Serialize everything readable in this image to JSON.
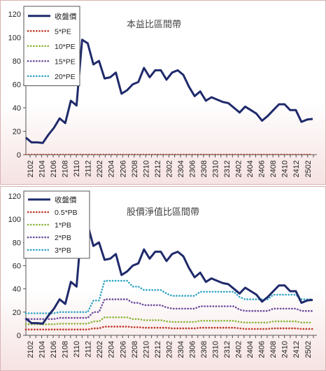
{
  "chart_data": [
    {
      "type": "line",
      "title": "本益比區間帶",
      "ylim": [
        0,
        120
      ],
      "y_ticks": [
        0,
        20,
        40,
        60,
        80,
        100,
        120
      ],
      "x_tick_labels": [
        "2102",
        "2104",
        "2106",
        "2108",
        "2110",
        "2112",
        "2202",
        "2204",
        "2206",
        "2208",
        "2210",
        "2212",
        "2302",
        "2304",
        "2306",
        "2308",
        "2310",
        "2312",
        "2402",
        "2404",
        "2406",
        "2408",
        "2410",
        "2412",
        "2502"
      ],
      "grid": false,
      "legend_position": "top-left",
      "series": [
        {
          "name": "收盤價",
          "color": "#1f2a6b",
          "style": "solid",
          "values": [
            14.5,
            10.5,
            10.5,
            10,
            17,
            23,
            31,
            27,
            46,
            42,
            98,
            95,
            77,
            80,
            65,
            66,
            70,
            52,
            55,
            60,
            62,
            74,
            66,
            72,
            72,
            64,
            70,
            72,
            68,
            58,
            50,
            54,
            46,
            49,
            47,
            45,
            44,
            40,
            36,
            41,
            38,
            35,
            29,
            33,
            38,
            43,
            43,
            38,
            38,
            28,
            30,
            30.5
          ]
        },
        {
          "name": "5*PE",
          "color": "#c0392b",
          "style": "dotted",
          "values": [
            0,
            0,
            0,
            0,
            0,
            0,
            0,
            0,
            0,
            0,
            0,
            0,
            0,
            0,
            0,
            0,
            0,
            0,
            0,
            0,
            0,
            0,
            0,
            0,
            0,
            0,
            0,
            0,
            0,
            0,
            0,
            0,
            0,
            0,
            0,
            0,
            0,
            0,
            0,
            0,
            0,
            0,
            0,
            0,
            0,
            0,
            0,
            0,
            0,
            0,
            0,
            0
          ]
        },
        {
          "name": "10*PE",
          "color": "#8db63c",
          "style": "dotted",
          "values": [
            0,
            0,
            0,
            0,
            0,
            0,
            0,
            0,
            0,
            0,
            0,
            0,
            0,
            0,
            0,
            0,
            0,
            0,
            0,
            0,
            0,
            0,
            0,
            0,
            0,
            0,
            0,
            0,
            0,
            0,
            0,
            0,
            0,
            0,
            0,
            0,
            0,
            0,
            0,
            0,
            0,
            0,
            0,
            0,
            0,
            0,
            0,
            0,
            0,
            0,
            0,
            0
          ]
        },
        {
          "name": "15*PE",
          "color": "#6a4c9c",
          "style": "dotted",
          "values": [
            0,
            0,
            0,
            0,
            0,
            0,
            0,
            0,
            0,
            0,
            0,
            0,
            0,
            0,
            0,
            0,
            0,
            0,
            0,
            0,
            0,
            0,
            0,
            0,
            0,
            0,
            0,
            0,
            0,
            0,
            0,
            0,
            0,
            0,
            0,
            0,
            0,
            0,
            0,
            0,
            0,
            0,
            0,
            0,
            0,
            0,
            0,
            0,
            0,
            0,
            0,
            0
          ]
        },
        {
          "name": "20*PE",
          "color": "#31a5c4",
          "style": "dotted",
          "values": [
            0,
            0,
            0,
            0,
            0,
            0,
            0,
            0,
            0,
            0,
            0,
            0,
            0,
            0,
            0,
            0,
            0,
            0,
            0,
            0,
            0,
            0,
            0,
            0,
            0,
            0,
            0,
            0,
            0,
            0,
            0,
            0,
            0,
            0,
            0,
            0,
            0,
            0,
            0,
            0,
            0,
            0,
            0,
            0,
            0,
            0,
            0,
            0,
            0,
            0,
            0,
            0
          ]
        }
      ]
    },
    {
      "type": "line",
      "title": "股價淨值比區間帶",
      "ylim": [
        0,
        120
      ],
      "y_ticks": [
        0,
        20,
        40,
        60,
        80,
        100,
        120
      ],
      "x_tick_labels": [
        "2102",
        "2104",
        "2106",
        "2108",
        "2110",
        "2112",
        "2202",
        "2204",
        "2206",
        "2208",
        "2210",
        "2212",
        "2302",
        "2304",
        "2306",
        "2308",
        "2310",
        "2312",
        "2402",
        "2404",
        "2406",
        "2408",
        "2410",
        "2412",
        "2502"
      ],
      "grid": false,
      "legend_position": "top-left",
      "series": [
        {
          "name": "收盤價",
          "color": "#1f2a6b",
          "style": "solid",
          "values": [
            14.5,
            10.5,
            10.5,
            10,
            17,
            23,
            31,
            27,
            46,
            42,
            98,
            95,
            77,
            80,
            65,
            66,
            70,
            52,
            55,
            60,
            62,
            74,
            66,
            72,
            72,
            64,
            70,
            72,
            68,
            58,
            50,
            54,
            46,
            49,
            47,
            45,
            44,
            40,
            36,
            41,
            38,
            35,
            29,
            33,
            38,
            43,
            43,
            38,
            38,
            28,
            30,
            30.5
          ]
        },
        {
          "name": "0.5*PB",
          "color": "#c0392b",
          "style": "dotted",
          "values": [
            5,
            5,
            5,
            5,
            5,
            5,
            5,
            5,
            5,
            5,
            5,
            5,
            6,
            6,
            7.5,
            7.5,
            7.5,
            7.5,
            7.5,
            7,
            7,
            6.5,
            6.5,
            6.5,
            6.5,
            6.5,
            6,
            6,
            6,
            6,
            6,
            6.5,
            6.5,
            6.5,
            6.5,
            6.5,
            6.5,
            6.5,
            6,
            5.5,
            5.5,
            5.5,
            5.5,
            5.5,
            6,
            6,
            6,
            6,
            6,
            5.5,
            5.5,
            5.5
          ]
        },
        {
          "name": "1*PB",
          "color": "#8db63c",
          "style": "dotted",
          "values": [
            9.5,
            9.5,
            9.5,
            9.5,
            9.5,
            9.5,
            10,
            10,
            10,
            10,
            10,
            10,
            12,
            12,
            15.5,
            15.5,
            15.5,
            15.5,
            15.5,
            14,
            14,
            13,
            13,
            13,
            13,
            12,
            11.5,
            11.5,
            11.5,
            11.5,
            11.5,
            12.5,
            12.5,
            12.5,
            12.5,
            12.5,
            12.5,
            12.5,
            11.5,
            11,
            11,
            11,
            11,
            11,
            12,
            12,
            12,
            12,
            12,
            11,
            11,
            11
          ]
        },
        {
          "name": "2*PB",
          "color": "#6a4c9c",
          "style": "dotted",
          "values": [
            14,
            14,
            14,
            14,
            14,
            14,
            15,
            15,
            15,
            15,
            15,
            15,
            20,
            20,
            31,
            31,
            31,
            31,
            31,
            28,
            28,
            26,
            26,
            26,
            26,
            24,
            23,
            23,
            23,
            23,
            23,
            25,
            25,
            25,
            25,
            25,
            25,
            25,
            22,
            21,
            21,
            21,
            21,
            21,
            23,
            23,
            23,
            23,
            23,
            21,
            21,
            21
          ]
        },
        {
          "name": "3*PB",
          "color": "#31a5c4",
          "style": "dotted",
          "values": [
            19,
            19,
            19,
            19,
            19,
            19,
            20,
            20,
            20,
            20,
            20,
            20,
            30,
            30,
            47,
            47,
            47,
            47,
            47,
            42,
            42,
            39,
            39,
            39,
            39,
            36,
            34,
            34,
            34,
            34,
            34,
            37.5,
            37.5,
            37.5,
            37.5,
            37.5,
            37.5,
            37.5,
            33,
            31,
            31,
            31,
            31,
            31,
            35,
            35,
            35,
            35,
            35,
            31,
            31,
            31
          ]
        }
      ]
    }
  ]
}
